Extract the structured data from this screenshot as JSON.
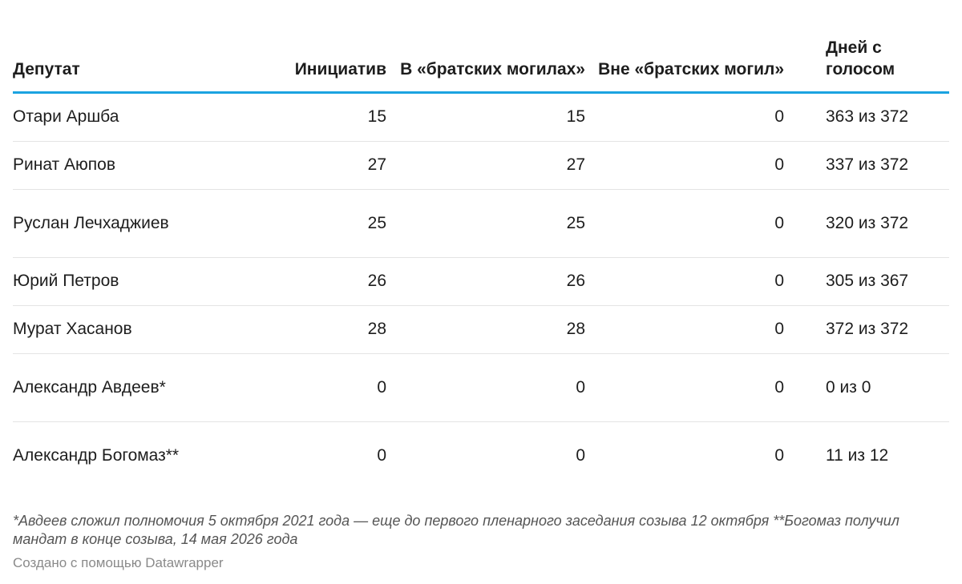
{
  "chart_data": {
    "type": "table",
    "columns": [
      "Депутат",
      "Инициатив",
      "В «братских могилах»",
      "Вне «братских могил»",
      "Дней с голосом"
    ],
    "rows": [
      [
        "Отари Аршба",
        "15",
        "15",
        "0",
        "363 из 372"
      ],
      [
        "Ринат Аюпов",
        "27",
        "27",
        "0",
        "337 из 372"
      ],
      [
        "Руслан Лечхаджиев",
        "25",
        "25",
        "0",
        "320 из 372"
      ],
      [
        "Юрий Петров",
        "26",
        "26",
        "0",
        "305 из 367"
      ],
      [
        "Мурат Хасанов",
        "28",
        "28",
        "0",
        "372 из 372"
      ],
      [
        "Александр Авдеев*",
        "0",
        "0",
        "0",
        "0 из 0"
      ],
      [
        "Александр Богомаз**",
        "0",
        "0",
        "0",
        "11 из 12"
      ]
    ],
    "accent_color": "#1ba3e0"
  },
  "footnote": "*Авдеев сложил полномочия 5 октября 2021 года — еще до первого пленарного заседания созыва 12 октября **Богомаз получил мандат в конце созыва, 14 мая 2026 года",
  "credit": "Создано с помощью Datawrapper"
}
